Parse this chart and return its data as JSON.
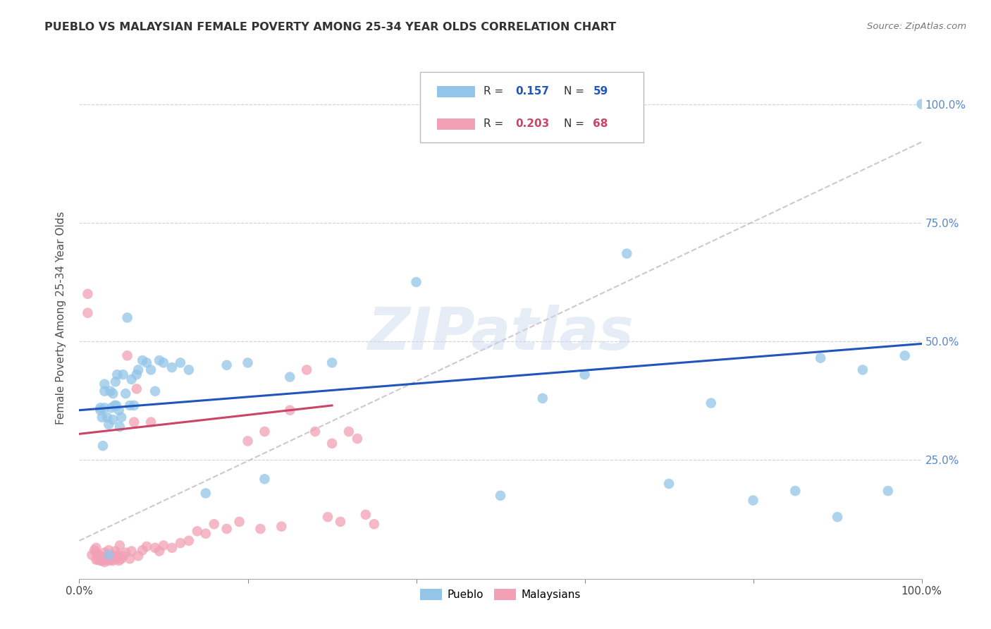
{
  "title": "PUEBLO VS MALAYSIAN FEMALE POVERTY AMONG 25-34 YEAR OLDS CORRELATION CHART",
  "source": "Source: ZipAtlas.com",
  "ylabel": "Female Poverty Among 25-34 Year Olds",
  "pueblo_color": "#92C5E8",
  "malaysian_color": "#F2A0B5",
  "pueblo_line_color": "#2255BB",
  "malaysian_line_color": "#CC4466",
  "dashed_color": "#C8B8BC",
  "watermark": "ZIPatlas",
  "pueblo_line": [
    0.0,
    0.355,
    1.0,
    0.495
  ],
  "malaysian_line": [
    0.0,
    0.305,
    0.3,
    0.365
  ],
  "dashed_line": [
    0.0,
    0.08,
    1.0,
    0.92
  ],
  "pueblo_scatter_x": [
    0.025,
    0.025,
    0.027,
    0.028,
    0.03,
    0.03,
    0.03,
    0.033,
    0.035,
    0.035,
    0.037,
    0.038,
    0.04,
    0.04,
    0.042,
    0.043,
    0.044,
    0.045,
    0.047,
    0.048,
    0.05,
    0.052,
    0.055,
    0.057,
    0.06,
    0.062,
    0.065,
    0.068,
    0.07,
    0.075,
    0.08,
    0.085,
    0.09,
    0.095,
    0.1,
    0.11,
    0.12,
    0.13,
    0.15,
    0.175,
    0.2,
    0.22,
    0.25,
    0.3,
    0.4,
    0.5,
    0.55,
    0.6,
    0.65,
    0.7,
    0.75,
    0.8,
    0.85,
    0.88,
    0.9,
    0.93,
    0.96,
    0.98,
    1.0
  ],
  "pueblo_scatter_y": [
    0.355,
    0.36,
    0.34,
    0.28,
    0.36,
    0.395,
    0.41,
    0.34,
    0.05,
    0.325,
    0.395,
    0.36,
    0.335,
    0.39,
    0.365,
    0.415,
    0.365,
    0.43,
    0.355,
    0.32,
    0.34,
    0.43,
    0.39,
    0.55,
    0.365,
    0.42,
    0.365,
    0.43,
    0.44,
    0.46,
    0.455,
    0.44,
    0.395,
    0.46,
    0.455,
    0.445,
    0.455,
    0.44,
    0.18,
    0.45,
    0.455,
    0.21,
    0.425,
    0.455,
    0.625,
    0.175,
    0.38,
    0.43,
    0.685,
    0.2,
    0.37,
    0.165,
    0.185,
    0.465,
    0.13,
    0.44,
    0.185,
    0.47,
    1.0
  ],
  "malaysian_scatter_x": [
    0.01,
    0.01,
    0.015,
    0.018,
    0.02,
    0.02,
    0.02,
    0.022,
    0.023,
    0.025,
    0.025,
    0.025,
    0.027,
    0.028,
    0.03,
    0.03,
    0.03,
    0.032,
    0.033,
    0.035,
    0.035,
    0.037,
    0.038,
    0.04,
    0.04,
    0.042,
    0.043,
    0.044,
    0.045,
    0.047,
    0.048,
    0.05,
    0.052,
    0.055,
    0.057,
    0.06,
    0.062,
    0.065,
    0.068,
    0.07,
    0.075,
    0.08,
    0.085,
    0.09,
    0.095,
    0.1,
    0.11,
    0.12,
    0.13,
    0.14,
    0.15,
    0.16,
    0.175,
    0.19,
    0.2,
    0.215,
    0.22,
    0.24,
    0.25,
    0.27,
    0.28,
    0.295,
    0.3,
    0.31,
    0.32,
    0.33,
    0.34,
    0.35
  ],
  "malaysian_scatter_y": [
    0.56,
    0.6,
    0.05,
    0.06,
    0.04,
    0.055,
    0.065,
    0.04,
    0.045,
    0.038,
    0.042,
    0.048,
    0.038,
    0.042,
    0.035,
    0.04,
    0.055,
    0.042,
    0.045,
    0.038,
    0.06,
    0.042,
    0.04,
    0.038,
    0.042,
    0.048,
    0.058,
    0.042,
    0.05,
    0.038,
    0.07,
    0.042,
    0.048,
    0.055,
    0.47,
    0.042,
    0.058,
    0.33,
    0.4,
    0.048,
    0.06,
    0.068,
    0.33,
    0.065,
    0.058,
    0.07,
    0.065,
    0.075,
    0.08,
    0.1,
    0.095,
    0.115,
    0.105,
    0.12,
    0.29,
    0.105,
    0.31,
    0.11,
    0.355,
    0.44,
    0.31,
    0.13,
    0.285,
    0.12,
    0.31,
    0.295,
    0.135,
    0.115
  ]
}
